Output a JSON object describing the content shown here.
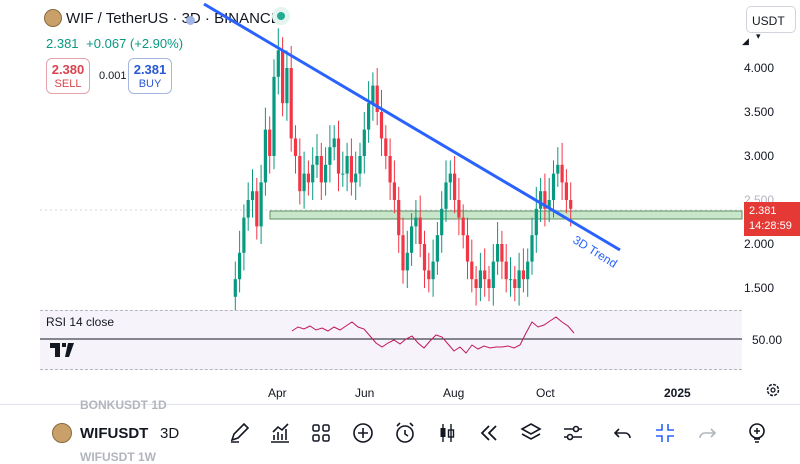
{
  "header": {
    "title": "WIF / TetherUS · 3D · BINANCE",
    "last_price": "2.381",
    "change": "+0.067 (+2.90%)",
    "sell_price": "2.380",
    "sell_label": "SELL",
    "spread": "0.001",
    "buy_price": "2.381",
    "buy_label": "BUY",
    "currency_select": "USDT"
  },
  "price_axis": {
    "ticks": [
      "4.000",
      "3.500",
      "3.000",
      "2.500",
      "2.000",
      "1.500"
    ],
    "current_price": "2.381",
    "countdown": "14:28:59"
  },
  "time_axis": {
    "labels": [
      "Apr",
      "Jun",
      "Aug",
      "Oct",
      "2025"
    ]
  },
  "indicator": {
    "label": "RSI 14 close",
    "level": "50.00"
  },
  "annotation": {
    "trend_label": "3D Trend"
  },
  "watchlist": {
    "prev_ghost": "BONKUSDT  1D",
    "symbol": "WIFUSDT",
    "timeframe": "3D",
    "next_ghost": "WIFUSDT  1W"
  },
  "toolbar_icons": [
    "pencil-icon",
    "chart-icon",
    "grid-icon",
    "plus-circle-icon",
    "alarm-icon",
    "candles-icon",
    "rewind-icon",
    "layers-icon",
    "sliders-icon",
    "undo-icon",
    "collapse-icon",
    "redo-icon",
    "lightbulb-icon"
  ],
  "colors": {
    "up": "#089981",
    "down": "#f23645",
    "trendline": "#2962ff",
    "zone": "#c8e6c9"
  }
}
